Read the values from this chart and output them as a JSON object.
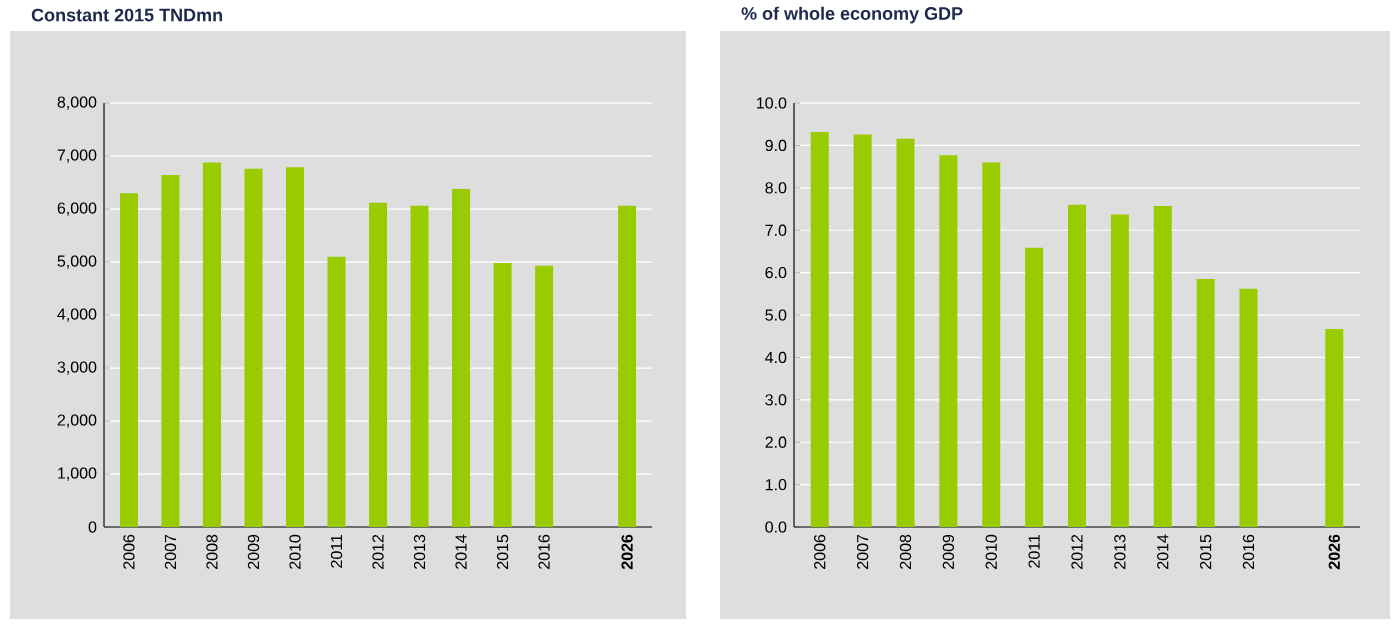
{
  "chart_data": [
    {
      "type": "bar",
      "title": "Constant 2015 TNDmn",
      "categories": [
        "2006",
        "2007",
        "2008",
        "2009",
        "2010",
        "2011",
        "2012",
        "2013",
        "2014",
        "2015",
        "2016",
        null,
        "**2026**"
      ],
      "values": [
        6300,
        6640,
        6880,
        6760,
        6790,
        5100,
        6120,
        6060,
        6380,
        4980,
        4930,
        null,
        6060
      ],
      "color": "#99cc00",
      "ylim": [
        0,
        8000
      ],
      "yticks": [
        {
          "value": 0,
          "label": "0"
        },
        {
          "value": 1000,
          "label": "1,000"
        },
        {
          "value": 2000,
          "label": "2,000"
        },
        {
          "value": 3000,
          "label": "3,000"
        },
        {
          "value": 4000,
          "label": "4,000"
        },
        {
          "value": 5000,
          "label": "5,000"
        },
        {
          "value": 6000,
          "label": "6,000"
        },
        {
          "value": 7000,
          "label": "7,000"
        },
        {
          "value": 8000,
          "label": "8,000"
        }
      ],
      "grid": "y"
    },
    {
      "type": "bar",
      "title": "%  of whole economy GDP",
      "categories": [
        "2006",
        "2007",
        "2008",
        "2009",
        "2010",
        "2011",
        "2012",
        "2013",
        "2014",
        "2015",
        "2016",
        null,
        "**2026**"
      ],
      "values": [
        9.32,
        9.26,
        9.16,
        8.77,
        8.6,
        6.59,
        7.6,
        7.37,
        7.57,
        5.85,
        5.62,
        null,
        4.67
      ],
      "color": "#99cc00",
      "ylim": [
        0,
        10
      ],
      "yticks": [
        {
          "value": 0,
          "label": "0.0"
        },
        {
          "value": 1,
          "label": "1.0"
        },
        {
          "value": 2,
          "label": "2.0"
        },
        {
          "value": 3,
          "label": "3.0"
        },
        {
          "value": 4,
          "label": "4.0"
        },
        {
          "value": 5,
          "label": "5.0"
        },
        {
          "value": 6,
          "label": "6.0"
        },
        {
          "value": 7,
          "label": "7.0"
        },
        {
          "value": 8,
          "label": "8.0"
        },
        {
          "value": 9,
          "label": "9.0"
        },
        {
          "value": 10,
          "label": "10.0"
        }
      ],
      "grid": "y"
    }
  ]
}
